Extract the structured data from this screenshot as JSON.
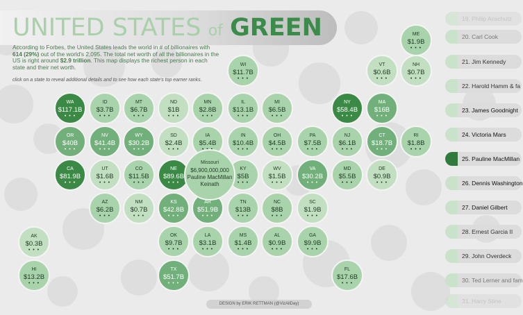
{
  "title": {
    "part1": "UNITED STATES",
    "part2": "of",
    "part3": "GREEN"
  },
  "intro": {
    "s1": "According to Forbes, the United States leads the world in # of billionaires with ",
    "b1": "614 (29%)",
    "s2": " out of the world's 2,095. The total net worth of all the billionaires in the US is right around ",
    "b2": "$2.9 trillion",
    "s3": ". This map displays the richest person in each state and their net worth."
  },
  "hint": "click on a state to reveal additional details and to see how each state's top earner ranks.",
  "dots_label": "• • •",
  "colors": {
    "dark": "#3a8a46",
    "mid": "#72b07b",
    "light": "#a9d3ab",
    "pale": "#c2dfc2",
    "highlight": "#2f7a3c"
  },
  "states": [
    {
      "ab": "ME",
      "val": "$1.9B",
      "tone": "light"
    },
    {
      "ab": "WI",
      "val": "$11.7B",
      "tone": "light"
    },
    {
      "ab": "VT",
      "val": "$0.6B",
      "tone": "pale"
    },
    {
      "ab": "NH",
      "val": "$0.7B",
      "tone": "pale"
    },
    {
      "ab": "WA",
      "val": "$117.1B",
      "tone": "dark"
    },
    {
      "ab": "ID",
      "val": "$3.7B",
      "tone": "light"
    },
    {
      "ab": "MT",
      "val": "$6.7B",
      "tone": "light"
    },
    {
      "ab": "ND",
      "val": "$1B",
      "tone": "pale"
    },
    {
      "ab": "MN",
      "val": "$2.8B",
      "tone": "light"
    },
    {
      "ab": "IL",
      "val": "$13.1B",
      "tone": "light"
    },
    {
      "ab": "MI",
      "val": "$6.5B",
      "tone": "light"
    },
    {
      "ab": "NY",
      "val": "$58.4B",
      "tone": "dark"
    },
    {
      "ab": "MA",
      "val": "$16B",
      "tone": "mid"
    },
    {
      "ab": "OR",
      "val": "$40B",
      "tone": "mid"
    },
    {
      "ab": "NV",
      "val": "$41.4B",
      "tone": "mid"
    },
    {
      "ab": "WY",
      "val": "$30.2B",
      "tone": "mid"
    },
    {
      "ab": "SD",
      "val": "$2.4B",
      "tone": "pale"
    },
    {
      "ab": "IA",
      "val": "$5.4B",
      "tone": "light"
    },
    {
      "ab": "IN",
      "val": "$10.4B",
      "tone": "light"
    },
    {
      "ab": "OH",
      "val": "$4.5B",
      "tone": "light"
    },
    {
      "ab": "PA",
      "val": "$7.5B",
      "tone": "light"
    },
    {
      "ab": "NJ",
      "val": "$6.1B",
      "tone": "light"
    },
    {
      "ab": "CT",
      "val": "$18.7B",
      "tone": "mid"
    },
    {
      "ab": "RI",
      "val": "$1.8B",
      "tone": "light"
    },
    {
      "ab": "CA",
      "val": "$81.9B",
      "tone": "dark"
    },
    {
      "ab": "UT",
      "val": "$1.6B",
      "tone": "pale"
    },
    {
      "ab": "CO",
      "val": "$11.5B",
      "tone": "light"
    },
    {
      "ab": "NE",
      "val": "$89.6B",
      "tone": "dark"
    },
    {
      "ab": "KY",
      "val": "$5B",
      "tone": "light"
    },
    {
      "ab": "WV",
      "val": "$1.5B",
      "tone": "pale"
    },
    {
      "ab": "VA",
      "val": "$30.2B",
      "tone": "mid"
    },
    {
      "ab": "MD",
      "val": "$5.5B",
      "tone": "light"
    },
    {
      "ab": "DE",
      "val": "$0.9B",
      "tone": "pale"
    },
    {
      "ab": "AZ",
      "val": "$6.2B",
      "tone": "light"
    },
    {
      "ab": "NM",
      "val": "$0.7B",
      "tone": "pale"
    },
    {
      "ab": "KS",
      "val": "$42.8B",
      "tone": "mid"
    },
    {
      "ab": "AR",
      "val": "$51.9B",
      "tone": "mid"
    },
    {
      "ab": "TN",
      "val": "$13B",
      "tone": "light"
    },
    {
      "ab": "NC",
      "val": "$8B",
      "tone": "light"
    },
    {
      "ab": "SC",
      "val": "$1.9B",
      "tone": "pale"
    },
    {
      "ab": "OK",
      "val": "$9.7B",
      "tone": "light"
    },
    {
      "ab": "LA",
      "val": "$3.1B",
      "tone": "light"
    },
    {
      "ab": "MS",
      "val": "$1.4B",
      "tone": "light"
    },
    {
      "ab": "AL",
      "val": "$0.9B",
      "tone": "light"
    },
    {
      "ab": "GA",
      "val": "$9.9B",
      "tone": "light"
    },
    {
      "ab": "AK",
      "val": "$0.3B",
      "tone": "pale"
    },
    {
      "ab": "HI",
      "val": "$13.2B",
      "tone": "light"
    },
    {
      "ab": "TX",
      "val": "$51.7B",
      "tone": "mid"
    },
    {
      "ab": "FL",
      "val": "$17.6B",
      "tone": "light"
    }
  ],
  "popup": {
    "state": "Missouri",
    "worth": "$6,900,000,000",
    "name": "Pauline MacMillan Keinath"
  },
  "rankings": [
    {
      "label": "19. Philip Anschutz",
      "style": "faded"
    },
    {
      "label": "20. Carl Cook",
      "style": "mid"
    },
    {
      "label": "21. Jim Kennedy",
      "style": "normal"
    },
    {
      "label": "22. Harold Hamm & fa",
      "style": "normal"
    },
    {
      "label": "23. James Goodnight",
      "style": "strong"
    },
    {
      "label": "24. Victoria Mars",
      "style": "strong"
    },
    {
      "label": "25. Pauline MacMillan",
      "style": "selected"
    },
    {
      "label": "26. Dennis Washington",
      "style": "strong"
    },
    {
      "label": "27. Daniel Gilbert",
      "style": "strong"
    },
    {
      "label": "28. Ernest Garcia II",
      "style": "normal"
    },
    {
      "label": "29. John Overdeck",
      "style": "normal"
    },
    {
      "label": "30. Ted Lerner and fam",
      "style": "mid"
    },
    {
      "label": "31. Harry Stine",
      "style": "faded"
    }
  ],
  "credit": "DESIGN by ERIK RETTMAN (@VizAllDay)"
}
